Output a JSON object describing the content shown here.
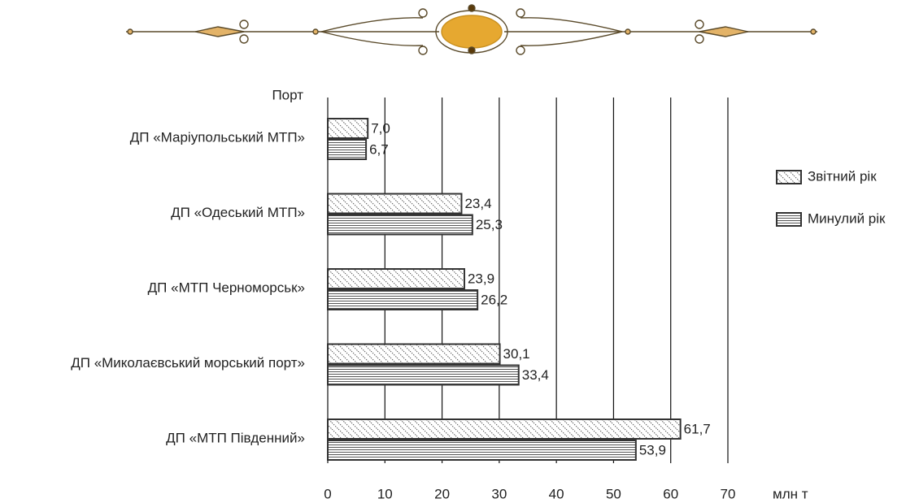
{
  "chart_data": {
    "type": "hbar",
    "y_label": "Порт",
    "x_label": "млн т",
    "categories": [
      "ДП «Маріупольський МТП»",
      "ДП «Одеський МТП»",
      "ДП «МТП Черноморськ»",
      "ДП «Миколаєвський морський порт»",
      "ДП «МТП Південний»"
    ],
    "series": [
      {
        "name": "Звітний рік",
        "color": "#333333",
        "hatch": "diagonal",
        "values": [
          7.0,
          23.4,
          23.9,
          30.1,
          61.7
        ],
        "value_labels": [
          "7,0",
          "23,4",
          "23,9",
          "30,1",
          "61,7"
        ]
      },
      {
        "name": "Минулий рік",
        "color": "#333333",
        "hatch": "horizontal",
        "values": [
          6.7,
          25.3,
          26.2,
          33.4,
          53.9
        ],
        "value_labels": [
          "6,7",
          "25,3",
          "26,2",
          "33,4",
          "53,9"
        ]
      }
    ],
    "xlim": [
      0,
      70
    ],
    "xticks": [
      0,
      10,
      20,
      30,
      40,
      50,
      60,
      70
    ],
    "grid": true,
    "legend": "right"
  }
}
